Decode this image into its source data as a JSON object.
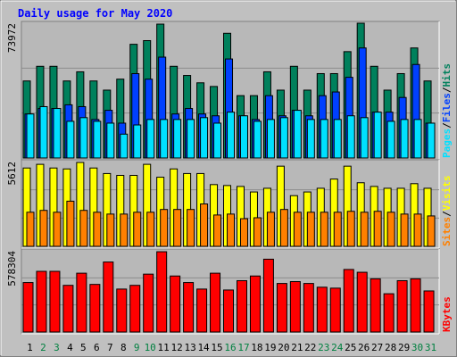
{
  "chart_data": {
    "type": "bar",
    "title": "Daily usage for May 2020",
    "categories": [
      "1",
      "2",
      "3",
      "4",
      "5",
      "6",
      "7",
      "8",
      "9",
      "10",
      "11",
      "12",
      "13",
      "14",
      "15",
      "16",
      "17",
      "18",
      "19",
      "20",
      "21",
      "22",
      "23",
      "24",
      "25",
      "26",
      "27",
      "28",
      "29",
      "30",
      "31"
    ],
    "label_colors": [
      "#000000",
      "#008040",
      "#008040",
      "#000000",
      "#000000",
      "#000000",
      "#000000",
      "#000000",
      "#008040",
      "#008040",
      "#000000",
      "#000000",
      "#000000",
      "#000000",
      "#000000",
      "#008040",
      "#008040",
      "#000000",
      "#000000",
      "#000000",
      "#000000",
      "#000000",
      "#008040",
      "#008040",
      "#000000",
      "#000000",
      "#000000",
      "#000000",
      "#000000",
      "#008040",
      "#008040"
    ],
    "legend_separator": "/",
    "panels": [
      {
        "ylim": [
          0,
          73972
        ],
        "series": [
          {
            "name": "Hits",
            "color": "#00805c",
            "values": [
              42270,
              50320,
              50320,
              42270,
              47300,
              42270,
              37240,
              43280,
              62400,
              64410,
              73470,
              50320,
              45290,
              41260,
              39250,
              68440,
              34220,
              34220,
              47300,
              37240,
              50320,
              37240,
              46300,
              46300,
              58370,
              73972,
              50320,
              37240,
              46300,
              60390,
              42270
            ]
          },
          {
            "name": "Files",
            "color": "#0040ff",
            "values": [
              24150,
              27170,
              27170,
              29180,
              28180,
              21130,
              26170,
              19120,
              46290,
              43270,
              55350,
              24150,
              27170,
              24150,
              23150,
              54340,
              23150,
              21130,
              34210,
              23150,
              26170,
              23150,
              34210,
              36230,
              44280,
              60380,
              25160,
              25160,
              33210,
              51320,
              19120
            ]
          },
          {
            "name": "Pages",
            "color": "#00e0ff",
            "values": [
              24150,
              28180,
              27170,
              20130,
              22140,
              20130,
              19120,
              13080,
              18120,
              21130,
              21130,
              21130,
              21130,
              22140,
              19120,
              25160,
              23150,
              20130,
              21130,
              22140,
              26170,
              21130,
              21130,
              21130,
              23150,
              22140,
              25160,
              20130,
              21130,
              21130,
              19120
            ]
          }
        ]
      },
      {
        "ylim": [
          0,
          5612
        ],
        "series": [
          {
            "name": "Visits",
            "color": "#ffff00",
            "values": [
              5185,
              5429,
              5185,
              5124,
              5551,
              5185,
              4819,
              4697,
              4697,
              5429,
              4575,
              5124,
              4819,
              4819,
              4087,
              4026,
              3965,
              3599,
              3843,
              5307,
              3355,
              3599,
              3843,
              4453,
              5307,
              4209,
              3965,
              3843,
              3843,
              4148,
              3843
            ]
          },
          {
            "name": "Sites",
            "color": "#ff8000",
            "values": [
              2257,
              2379,
              2257,
              2989,
              2379,
              2257,
              2135,
              2135,
              2257,
              2257,
              2440,
              2440,
              2440,
              2806,
              2074,
              2135,
              1830,
              1891,
              2257,
              2440,
              2257,
              2257,
              2257,
              2257,
              2318,
              2257,
              2318,
              2257,
              2135,
              2135,
              2013
            ]
          }
        ]
      },
      {
        "ylim": [
          0,
          578304
        ],
        "series": [
          {
            "name": "KBytes",
            "color": "#ff0000",
            "values": [
              352300,
              432060,
              432060,
              332350,
              418760,
              339000,
              498530,
              305760,
              332350,
              412110,
              571640,
              398820,
              352300,
              305760,
              418760,
              299120,
              365590,
              398820,
              518470,
              345640,
              358940,
              345640,
              319060,
              312410,
              445350,
              425410,
              378880,
              272530,
              365590,
              378880,
              292470
            ]
          }
        ]
      }
    ]
  }
}
